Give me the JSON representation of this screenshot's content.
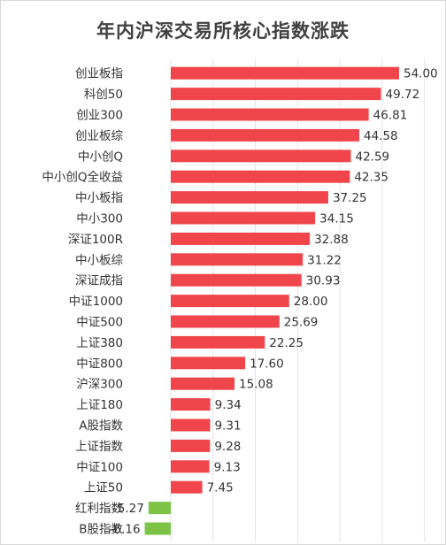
{
  "chart_data": {
    "type": "bar",
    "orientation": "horizontal",
    "title": "年内沪深交易所核心指数涨跌",
    "categories": [
      "创业板指",
      "科创50",
      "创业300",
      "创业板综",
      "中小创Q",
      "中小创Q全收益",
      "中小板指",
      "中小300",
      "深证100R",
      "中小板综",
      "深证成指",
      "中证1000",
      "中证500",
      "上证380",
      "中证800",
      "沪深300",
      "上证180",
      "A股指数",
      "上证指数",
      "中证100",
      "上证50",
      "红利指数",
      "B股指数"
    ],
    "values": [
      54.0,
      49.72,
      46.81,
      44.58,
      42.59,
      42.35,
      37.25,
      34.15,
      32.88,
      31.22,
      30.93,
      28.0,
      25.69,
      22.25,
      17.6,
      15.08,
      9.34,
      9.31,
      9.28,
      9.13,
      7.45,
      -5.27,
      -6.16
    ],
    "labels": [
      "54.00",
      "49.72",
      "46.81",
      "44.58",
      "42.59",
      "42.35",
      "37.25",
      "34.15",
      "32.88",
      "31.22",
      "30.93",
      "28.00",
      "25.69",
      "22.25",
      "17.60",
      "15.08",
      "9.34",
      "9.31",
      "9.28",
      "9.13",
      "7.45",
      "-5.27",
      "-6.16"
    ],
    "positive_color": "#f0454a",
    "negative_color": "#7dc446",
    "grid": true,
    "legend": "none"
  }
}
